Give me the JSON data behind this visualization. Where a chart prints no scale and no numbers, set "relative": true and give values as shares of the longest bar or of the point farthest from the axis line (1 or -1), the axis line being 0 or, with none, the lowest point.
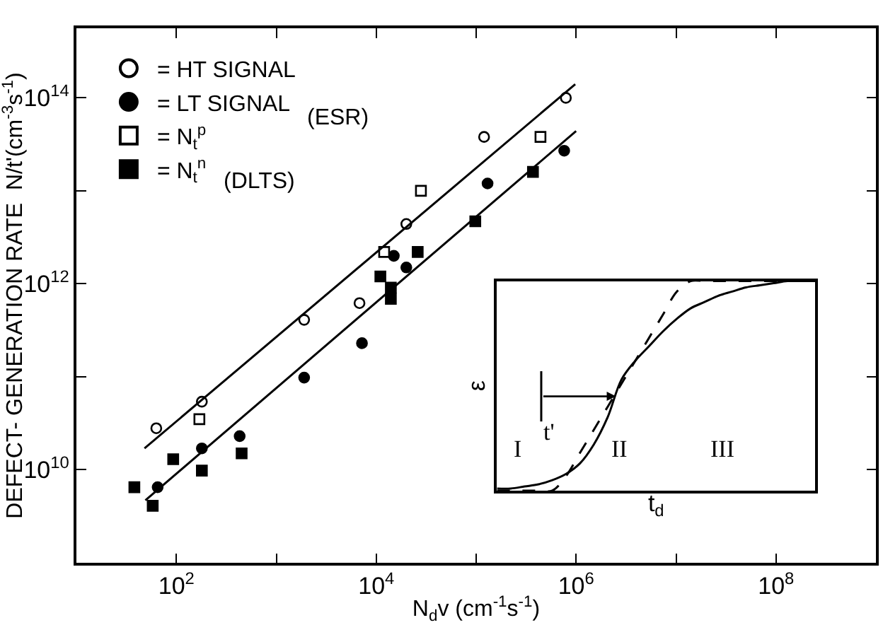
{
  "chart_data": [
    {
      "type": "scatter",
      "xlabel": "N$_{d}$v (cm$^{-1}$s$^{-1}$)",
      "ylabel": "DEFECT- GENERATION RATE  N/t'(cm$^{-3}$s$^{-1}$)",
      "log": "xy",
      "legend": "top left",
      "xlim": [
        10,
        1000000000
      ],
      "ylim": [
        1000000000,
        560000000000000
      ],
      "xticks": [
        {
          "value": 10,
          "label": null
        },
        {
          "value": 100,
          "label": "10$^{2}$"
        },
        {
          "value": 1000,
          "label": null
        },
        {
          "value": 10000,
          "label": "10$^{4}$"
        },
        {
          "value": 100000,
          "label": null
        },
        {
          "value": 1000000,
          "label": "10$^{6}$"
        },
        {
          "value": 10000000,
          "label": null
        },
        {
          "value": 100000000,
          "label": "10$^{8}$"
        }
      ],
      "yticks": [
        {
          "value": 10000000000,
          "label": "10$^{10}$"
        },
        {
          "value": 100000000000,
          "label": null
        },
        {
          "value": 1000000000000,
          "label": "10$^{12}$"
        },
        {
          "value": 10000000000000,
          "label": null
        },
        {
          "value": 100000000000000,
          "label": "10$^{14}$"
        }
      ],
      "annotations": [
        "(ESR)",
        "(DLTS)"
      ],
      "series": [
        {
          "name": "= HT SIGNAL",
          "marker": "circle",
          "color": "#ffffff",
          "x": [
            63,
            180,
            1900,
            6800,
            20000,
            120000,
            790000
          ],
          "values": [
            28000000000,
            54000000000,
            410000000000,
            620000000000,
            4400000000000,
            38000000000000,
            100000000000000
          ]
        },
        {
          "name": "= LT SIGNAL",
          "marker": "circle",
          "color": "#000000",
          "x": [
            65,
            180,
            430,
            1900,
            7200,
            15000,
            20000,
            130000,
            760000
          ],
          "values": [
            6500000000,
            17000000000,
            23000000000,
            98000000000,
            230000000000,
            2000000000000,
            1500000000000,
            12000000000000,
            27000000000000
          ]
        },
        {
          "name": "= N$_{t}$$^{p}$",
          "marker": "square",
          "color": "#ffffff",
          "x": [
            170,
            12000,
            28000,
            440000
          ],
          "values": [
            35000000000,
            2200000000000,
            10000000000000,
            38000000000000
          ]
        },
        {
          "name": "= N$_{t}$$^{n}$",
          "marker": "square",
          "color": "#000000",
          "x": [
            38,
            58,
            93,
            180,
            450,
            11000,
            14000,
            14000,
            26000,
            98000,
            370000
          ],
          "values": [
            6500000000,
            4100000000,
            13000000000,
            9800000000,
            15000000000,
            1200000000000,
            910000000000,
            690000000000,
            2200000000000,
            4700000000000,
            16000000000000
          ]
        },
        {
          "type": "line",
          "line_style": "solid",
          "color": "#000000",
          "x": [
            48,
            980000
          ],
          "values": [
            17000000000,
            140000000000000
          ]
        },
        {
          "type": "line",
          "line_style": "solid",
          "color": "#000000",
          "x": [
            49,
            1000000
          ],
          "values": [
            4700000000,
            44000000000000
          ]
        }
      ]
    },
    {
      "type": "line",
      "relative": true,
      "xlabel": "t$_{d}$",
      "ylabel": "ε",
      "legend": false,
      "categories": [
        null,
        null,
        null,
        null,
        null,
        null,
        null,
        null,
        null,
        null,
        null,
        null,
        null,
        null,
        null,
        null,
        null,
        null,
        null,
        null,
        null,
        null,
        null,
        null
      ],
      "annotations": [
        "I",
        "II",
        "III",
        "t'"
      ],
      "series": [
        {
          "line_style": "solid",
          "color": "#000000",
          "values": [
            0.01,
            0.01,
            0.02,
            0.03,
            0.05,
            0.08,
            0.13,
            0.22,
            0.35,
            0.53,
            0.62,
            0.69,
            0.76,
            0.82,
            0.87,
            0.9,
            0.93,
            0.95,
            0.97,
            0.98,
            0.99,
            1.0,
            1.0,
            1.0
          ]
        },
        {
          "line_style": "dashed",
          "color": "#000000",
          "values": [
            0,
            0,
            0,
            0,
            0,
            0.07,
            0.18,
            0.29,
            0.4,
            0.51,
            0.62,
            0.73,
            0.84,
            0.95,
            1.0,
            1.0,
            1.0,
            1.0,
            1.0,
            1.0,
            1.0,
            1.0,
            1.0,
            1.0
          ]
        }
      ]
    }
  ]
}
